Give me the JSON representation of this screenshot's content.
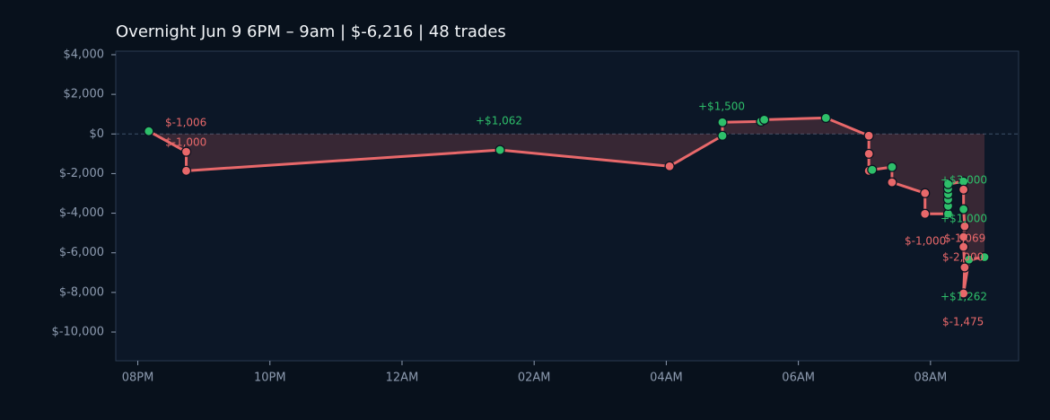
{
  "chart_data": {
    "type": "line",
    "title": "Overnight  Jun 9 6PM – 9am  |  $-6,216  |  48 trades",
    "x": [
      "20:10",
      "20:44",
      "20:44",
      "01:29",
      "04:03",
      "04:51",
      "04:51",
      "05:26",
      "05:29",
      "06:25",
      "07:04",
      "07:04",
      "07:04",
      "07:07",
      "07:25",
      "07:25",
      "07:55",
      "07:55",
      "08:16",
      "08:16",
      "08:16",
      "08:16",
      "08:16",
      "08:16",
      "08:30",
      "08:30",
      "08:30",
      "08:31",
      "08:30",
      "08:30",
      "08:31",
      "08:30",
      "08:35",
      "08:49"
    ],
    "series": [
      {
        "color": "#e8686a",
        "values": [
          140,
          -900,
          -1860,
          -810,
          -1630,
          -90,
          590,
          630,
          720,
          810,
          -90,
          -1000,
          -1860,
          -1810,
          -1670,
          -2440,
          -2990,
          -4030,
          -4030,
          -3630,
          -3300,
          -3030,
          -2760,
          -2530,
          -2400,
          -2810,
          -3800,
          -4660,
          -5200,
          -5700,
          -6740,
          -8050,
          -6340,
          -6216
        ],
        "marker_colors": [
          "#2ebf6a",
          "#e8686a",
          "#e8686a",
          "#2ebf6a",
          "#e8686a",
          "#2ebf6a",
          "#2ebf6a",
          "#2ebf6a",
          "#2ebf6a",
          "#2ebf6a",
          "#e8686a",
          "#e8686a",
          "#e8686a",
          "#2ebf6a",
          "#2ebf6a",
          "#e8686a",
          "#e8686a",
          "#e8686a",
          "#2ebf6a",
          "#2ebf6a",
          "#2ebf6a",
          "#2ebf6a",
          "#2ebf6a",
          "#2ebf6a",
          "#2ebf6a",
          "#e8686a",
          "#2ebf6a",
          "#e8686a",
          "#e8686a",
          "#e8686a",
          "#e8686a",
          "#e8686a",
          "#2ebf6a",
          "#2ebf6a"
        ]
      }
    ],
    "annotations": [
      {
        "text": "$-1,006",
        "color": "#e8686a"
      },
      {
        "text": "$-1,000",
        "color": "#e8686a"
      },
      {
        "text": "+$1,062",
        "color": "#2ebf6a"
      },
      {
        "text": "+$1,500",
        "color": "#2ebf6a"
      },
      {
        "text": "+$3,000",
        "color": "#2ebf6a"
      },
      {
        "text": "+$1,000",
        "color": "#2ebf6a"
      },
      {
        "text": "$-1,069",
        "color": "#e8686a"
      },
      {
        "text": "$-1,000",
        "color": "#e8686a"
      },
      {
        "text": "$-2,000",
        "color": "#e8686a"
      },
      {
        "text": "+$1,262",
        "color": "#2ebf6a"
      },
      {
        "text": "$-1,475",
        "color": "#e8686a"
      }
    ],
    "xlim": [
      "19:40",
      "09:20"
    ],
    "xticks": [
      {
        "value": "20:00",
        "label": "08PM"
      },
      {
        "value": "22:00",
        "label": "10PM"
      },
      {
        "value": "00:00",
        "label": "12AM"
      },
      {
        "value": "02:00",
        "label": "02AM"
      },
      {
        "value": "04:00",
        "label": "04AM"
      },
      {
        "value": "06:00",
        "label": "06AM"
      },
      {
        "value": "08:00",
        "label": "08AM"
      }
    ],
    "ylim": [
      -11450,
      4180
    ],
    "yticks": [
      {
        "value": 4000,
        "label": "$4,000"
      },
      {
        "value": 2000,
        "label": "$2,000"
      },
      {
        "value": 0,
        "label": "$0"
      },
      {
        "value": -2000,
        "label": "$-2,000"
      },
      {
        "value": -4000,
        "label": "$-4,000"
      },
      {
        "value": -6000,
        "label": "$-6,000"
      },
      {
        "value": -8000,
        "label": "$-8,000"
      },
      {
        "value": -10000,
        "label": "$-10,000"
      }
    ],
    "grid": false
  }
}
